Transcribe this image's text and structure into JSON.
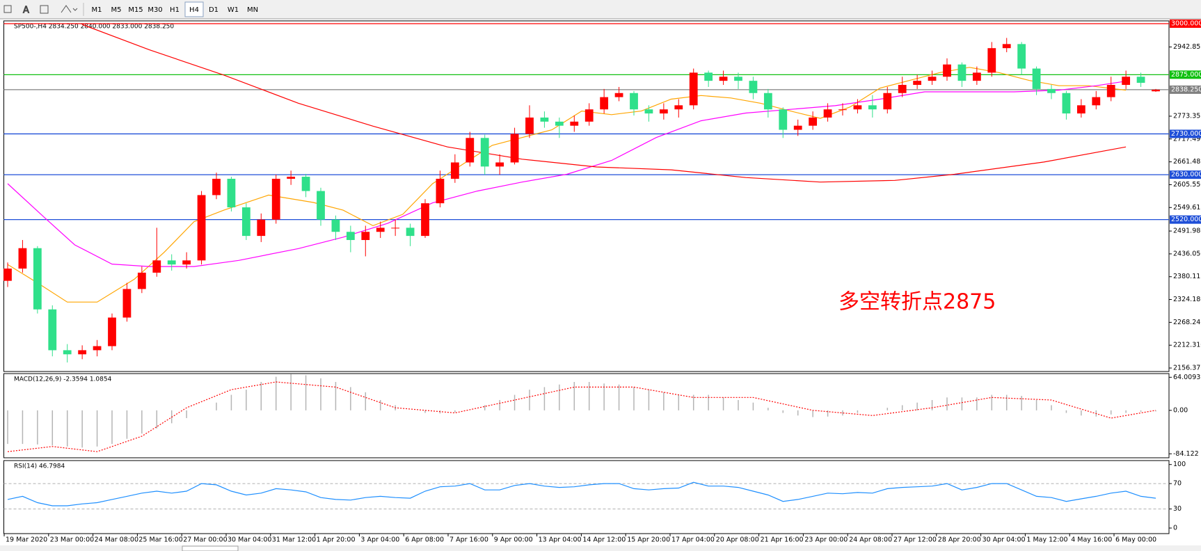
{
  "toolbar": {
    "buttons": [
      "M1",
      "M5",
      "M15",
      "M30",
      "H1",
      "H4",
      "D1",
      "W1",
      "MN"
    ],
    "active": 5
  },
  "time_axis": {
    "labels": [
      "19 Mar 2020",
      "23 Mar 00:00",
      "24 Mar 08:00",
      "25 Mar 16:00",
      "27 Mar 00:00",
      "30 Mar 04:00",
      "31 Mar 12:00",
      "1 Apr 20:00",
      "3 Apr 04:00",
      "6 Apr 08:00",
      "7 Apr 16:00",
      "9 Apr 00:00",
      "13 Apr 04:00",
      "14 Apr 12:00",
      "15 Apr 20:00",
      "17 Apr 04:00",
      "20 Apr 08:00",
      "21 Apr 16:00",
      "23 Apr 00:00",
      "24 Apr 08:00",
      "27 Apr 12:00",
      "28 Apr 20:00",
      "30 Apr 04:00",
      "1 May 12:00",
      "4 May 16:00",
      "6 May 00:00"
    ]
  },
  "chart_data": [
    {
      "type": "candlestick",
      "title": "SP500-,H4  2834.250 2840.000 2833.000 2838.250",
      "annotation": "多空转折点2875",
      "up_color": "#ff0000",
      "down_color": "#2fe08a",
      "open": [
        2370,
        2400,
        2450,
        2300,
        2200,
        2190,
        2200,
        2210,
        2280,
        2350,
        2390,
        2420,
        2410,
        2420,
        2580,
        2620,
        2550,
        2480,
        2520,
        2620,
        2625,
        2590,
        2520,
        2490,
        2470,
        2490,
        2500,
        2500,
        2480,
        2560,
        2620,
        2660,
        2720,
        2650,
        2660,
        2730,
        2770,
        2760,
        2750,
        2760,
        2790,
        2820,
        2830,
        2790,
        2780,
        2790,
        2800,
        2880,
        2860,
        2870,
        2860,
        2830,
        2790,
        2740,
        2750,
        2770,
        2790,
        2790,
        2800,
        2790,
        2830,
        2850,
        2860,
        2870,
        2900,
        2860,
        2880,
        2940,
        2950,
        2890,
        2840,
        2830,
        2780,
        2800,
        2820,
        2850,
        2870,
        2834.25
      ],
      "high": [
        2415,
        2470,
        2455,
        2310,
        2215,
        2212,
        2225,
        2290,
        2365,
        2405,
        2500,
        2435,
        2440,
        2590,
        2635,
        2625,
        2560,
        2535,
        2630,
        2640,
        2632,
        2598,
        2530,
        2505,
        2505,
        2515,
        2520,
        2510,
        2570,
        2640,
        2680,
        2735,
        2728,
        2680,
        2745,
        2800,
        2785,
        2770,
        2775,
        2805,
        2840,
        2845,
        2835,
        2800,
        2805,
        2815,
        2890,
        2885,
        2885,
        2880,
        2870,
        2840,
        2795,
        2765,
        2785,
        2805,
        2805,
        2815,
        2825,
        2845,
        2870,
        2875,
        2885,
        2915,
        2905,
        2895,
        2955,
        2965,
        2955,
        2895,
        2850,
        2835,
        2815,
        2835,
        2870,
        2885,
        2880,
        2840
      ],
      "low": [
        2355,
        2390,
        2290,
        2185,
        2170,
        2178,
        2185,
        2200,
        2270,
        2340,
        2380,
        2395,
        2400,
        2410,
        2570,
        2540,
        2470,
        2465,
        2510,
        2605,
        2575,
        2505,
        2470,
        2440,
        2430,
        2475,
        2480,
        2455,
        2475,
        2550,
        2610,
        2650,
        2630,
        2630,
        2655,
        2720,
        2745,
        2720,
        2735,
        2750,
        2780,
        2810,
        2775,
        2760,
        2765,
        2770,
        2790,
        2845,
        2850,
        2840,
        2815,
        2770,
        2720,
        2725,
        2740,
        2760,
        2775,
        2780,
        2770,
        2780,
        2820,
        2840,
        2850,
        2860,
        2845,
        2850,
        2870,
        2930,
        2875,
        2825,
        2815,
        2765,
        2770,
        2790,
        2810,
        2840,
        2845,
        2833
      ],
      "close": [
        2400,
        2450,
        2300,
        2200,
        2190,
        2200,
        2210,
        2280,
        2350,
        2390,
        2420,
        2410,
        2420,
        2580,
        2620,
        2550,
        2480,
        2520,
        2620,
        2625,
        2590,
        2520,
        2490,
        2470,
        2490,
        2500,
        2500,
        2480,
        2560,
        2620,
        2660,
        2720,
        2650,
        2660,
        2730,
        2770,
        2760,
        2750,
        2760,
        2790,
        2820,
        2830,
        2790,
        2780,
        2790,
        2800,
        2880,
        2860,
        2870,
        2860,
        2830,
        2790,
        2740,
        2750,
        2770,
        2790,
        2790,
        2800,
        2790,
        2830,
        2850,
        2860,
        2870,
        2900,
        2860,
        2880,
        2940,
        2950,
        2890,
        2840,
        2830,
        2780,
        2800,
        2820,
        2850,
        2870,
        2855,
        2838.25
      ],
      "overlays": [
        {
          "color": "#ffa500",
          "x": [
            0,
            2,
            4,
            6,
            8.5,
            10.5,
            12.5,
            14.5,
            17.5,
            20.5,
            22.5,
            24.5,
            26.5,
            28.5,
            30.5,
            32.5,
            34.5,
            36.5,
            38.5,
            40.5,
            42.5,
            44.5,
            46.5,
            48.5,
            50.5,
            52.5,
            54.5,
            56.5,
            58.5,
            60.5,
            62.5,
            64.5,
            66.5,
            68.5,
            70.5,
            72.5,
            75
          ],
          "values": [
            2410,
            2365,
            2318,
            2318,
            2374,
            2440,
            2515,
            2543,
            2580,
            2562,
            2543,
            2505,
            2533,
            2608,
            2655,
            2702,
            2721,
            2740,
            2786,
            2777,
            2786,
            2815,
            2824,
            2818,
            2805,
            2786,
            2768,
            2796,
            2842,
            2861,
            2880,
            2893,
            2880,
            2861,
            2848,
            2848,
            2837
          ]
        },
        {
          "color": "#ff00ff",
          "x": [
            0,
            2.5,
            4.5,
            7,
            9.5,
            12.5,
            15.5,
            19.5,
            22.5,
            25.5,
            28.5,
            31.5,
            34.5,
            37.5,
            40.5,
            43.5,
            46.5,
            49.5,
            52.5,
            55.5,
            58.5,
            61.5,
            64.5,
            67.5,
            70.5,
            73,
            75
          ],
          "values": [
            2608,
            2524,
            2458,
            2411,
            2405,
            2405,
            2420,
            2449,
            2477,
            2511,
            2561,
            2590,
            2612,
            2631,
            2665,
            2721,
            2762,
            2781,
            2790,
            2799,
            2815,
            2833,
            2833,
            2833,
            2837,
            2848,
            2859
          ]
        },
        {
          "color": "#ff0000",
          "x": [
            5,
            9.5,
            14.5,
            19.5,
            24.5,
            29.5,
            34.5,
            39.5,
            44.5,
            49.5,
            54.5,
            59.5,
            63.5,
            69.5,
            75
          ],
          "values": [
            2998,
            2936,
            2874,
            2805,
            2749,
            2698,
            2668,
            2649,
            2642,
            2623,
            2612,
            2616,
            2631,
            2661,
            2698
          ]
        }
      ],
      "levels": [
        {
          "value": 3000,
          "label": "3000.000",
          "color": "#ff0000"
        },
        {
          "value": 2875,
          "label": "2875.000",
          "color": "#11c011"
        },
        {
          "value": 2838.25,
          "label": "2838.250",
          "color": "#808080"
        },
        {
          "value": 2730,
          "label": "2730.000",
          "color": "#1f4fd8"
        },
        {
          "value": 2630,
          "label": "2630.000",
          "color": "#1f4fd8"
        },
        {
          "value": 2520,
          "label": "2520.000",
          "color": "#1f4fd8"
        }
      ],
      "ylim": [
        2156.375,
        3000
      ],
      "yticks": [
        2942.855,
        2773.355,
        {
          "value": 2717.49,
          "label": "2717.490"
        },
        2661.485,
        {
          "value": 2605.55,
          "label": "2605.550"
        },
        2549.615,
        {
          "value": 2491.98,
          "label": "2491.980"
        },
        {
          "value": 2436.05,
          "label": "2436.050"
        },
        2380.115,
        {
          "value": 2324.18,
          "label": "2324.180"
        },
        2268.245,
        {
          "value": 2212.31,
          "label": "2212.310"
        },
        2156.375
      ]
    },
    {
      "type": "macd",
      "title": "MACD(12,26,9) -2.3594 1.0854",
      "color": "#b4b4b4",
      "values": [
        -65,
        -65,
        -66,
        -68,
        -70,
        -72,
        -70,
        -65,
        -55,
        -45,
        -35,
        -25,
        -15,
        0,
        15,
        30,
        40,
        55,
        65,
        70,
        68,
        62,
        55,
        45,
        35,
        20,
        10,
        0,
        -5,
        -6,
        -4,
        0,
        10,
        20,
        30,
        40,
        45,
        50,
        55,
        55,
        52,
        50,
        45,
        40,
        35,
        30,
        30,
        30,
        25,
        20,
        15,
        5,
        -5,
        -10,
        -13,
        -12,
        -10,
        -5,
        0,
        5,
        10,
        15,
        20,
        25,
        25,
        25,
        30,
        30,
        28,
        20,
        10,
        -5,
        -10,
        -12,
        -8,
        -5,
        -3,
        -2
      ],
      "signal": {
        "color": "#ff0000",
        "x": [
          0,
          3,
          6,
          9,
          12,
          15,
          18,
          22,
          26,
          30,
          34,
          38,
          42,
          46,
          50,
          54,
          58,
          62,
          66,
          70,
          74,
          77
        ],
        "values": [
          -80,
          -70,
          -80,
          -50,
          5,
          40,
          55,
          45,
          5,
          -5,
          20,
          45,
          45,
          25,
          25,
          0,
          -10,
          5,
          25,
          20,
          -15,
          0
        ]
      },
      "ylim": [
        -84.122,
        64.0093
      ],
      "yticks": [
        64.0093,
        {
          "value": 0,
          "label": "0.00"
        },
        -84.122
      ]
    },
    {
      "type": "line",
      "title": "RSI(14) 46.7984",
      "color": "#1e8fff",
      "values": [
        45,
        50,
        40,
        35,
        35,
        38,
        40,
        45,
        50,
        55,
        58,
        55,
        58,
        70,
        68,
        58,
        52,
        55,
        62,
        60,
        57,
        48,
        45,
        44,
        48,
        50,
        48,
        47,
        58,
        65,
        66,
        70,
        60,
        60,
        67,
        70,
        66,
        64,
        65,
        68,
        70,
        70,
        62,
        60,
        62,
        63,
        72,
        66,
        66,
        64,
        58,
        52,
        42,
        45,
        50,
        55,
        54,
        56,
        55,
        62,
        64,
        65,
        66,
        70,
        60,
        64,
        70,
        70,
        60,
        50,
        48,
        42,
        46,
        50,
        55,
        58,
        50,
        47
      ],
      "ylim": [
        0,
        100
      ],
      "yticks": [
        100,
        70,
        30,
        0
      ]
    }
  ]
}
